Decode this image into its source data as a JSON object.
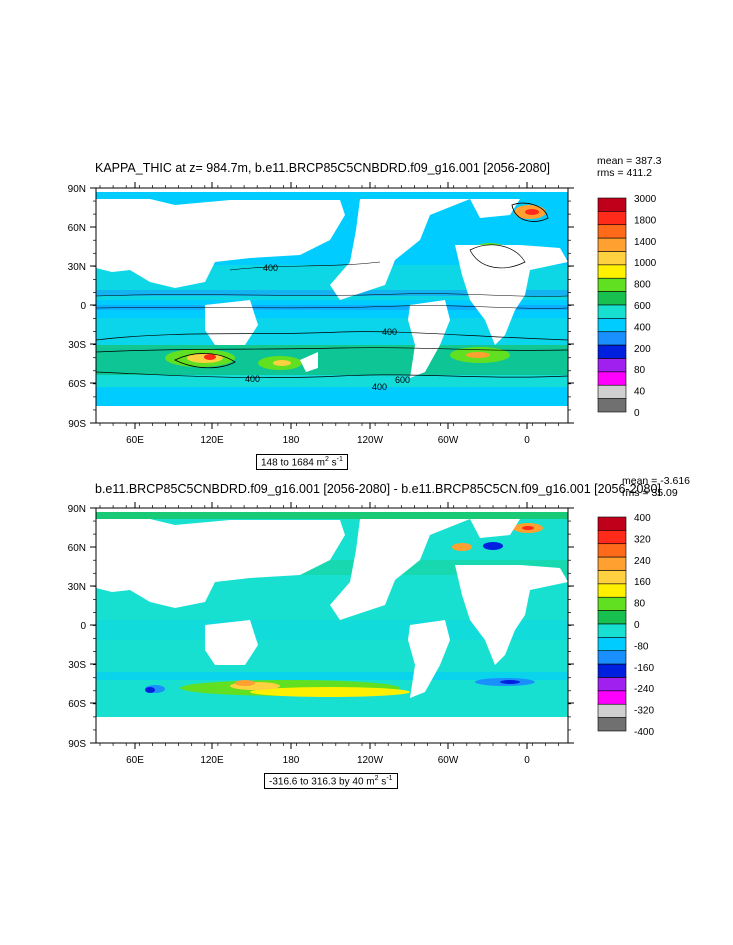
{
  "panel1": {
    "title": "KAPPA_THIC at z= 984.7m, b.e11.BRCP85C5CNBDRD.f09_g16.001 [2056-2080]",
    "mean": "mean = 387.3",
    "rms": "rms = 411.2",
    "range_prefix": "148 to 1684 m",
    "range_unit_exp1": "2",
    "range_mid": " s",
    "range_unit_exp2": "-1",
    "lat_labels": [
      "90N",
      "60N",
      "30N",
      "0",
      "30S",
      "60S",
      "90S"
    ],
    "lon_labels": [
      "60E",
      "120E",
      "180",
      "120W",
      "60W",
      "0"
    ],
    "contour_labels": [
      "400",
      "400",
      "400",
      "600",
      "400"
    ],
    "colorbar_labels": [
      "3000",
      "1800",
      "1400",
      "1000",
      "800",
      "600",
      "400",
      "200",
      "80",
      "40",
      "0"
    ],
    "colorbar_colors": [
      "#c0001a",
      "#ff2a1a",
      "#ff6a1a",
      "#ffa030",
      "#ffd040",
      "#fff000",
      "#60e020",
      "#18c050",
      "#18e0d0",
      "#00ccff",
      "#1a90ff",
      "#0020e0",
      "#a020f0",
      "#ff00ff",
      "#d0d0d0",
      "#707070"
    ]
  },
  "panel2": {
    "title": "b.e11.BRCP85C5CNBDRD.f09_g16.001 [2056-2080] - b.e11.BRCP85C5CN.f09_g16.001 [2056-2080]",
    "mean": "mean = -3.616",
    "rms": "rms = 35.09",
    "range_prefix": "-316.6 to 316.3 by 40 m",
    "range_unit_exp1": "2",
    "range_mid": " s",
    "range_unit_exp2": "-1",
    "lat_labels": [
      "90N",
      "60N",
      "30N",
      "0",
      "30S",
      "60S",
      "90S"
    ],
    "lon_labels": [
      "60E",
      "120E",
      "180",
      "120W",
      "60W",
      "0"
    ],
    "colorbar_labels": [
      "400",
      "320",
      "240",
      "160",
      "80",
      "0",
      "-80",
      "-160",
      "-240",
      "-320",
      "-400"
    ],
    "colorbar_colors": [
      "#c0001a",
      "#ff2a1a",
      "#ff6a1a",
      "#ffa030",
      "#ffd040",
      "#fff000",
      "#60e020",
      "#18c050",
      "#18e0d0",
      "#00ccff",
      "#1a90ff",
      "#0020e0",
      "#a020f0",
      "#ff00ff",
      "#d0d0d0",
      "#707070"
    ]
  },
  "colors": {
    "land": "#ffffff",
    "ocean_base_1": "#00ccff",
    "ocean_base_2": "#18e0d0"
  }
}
